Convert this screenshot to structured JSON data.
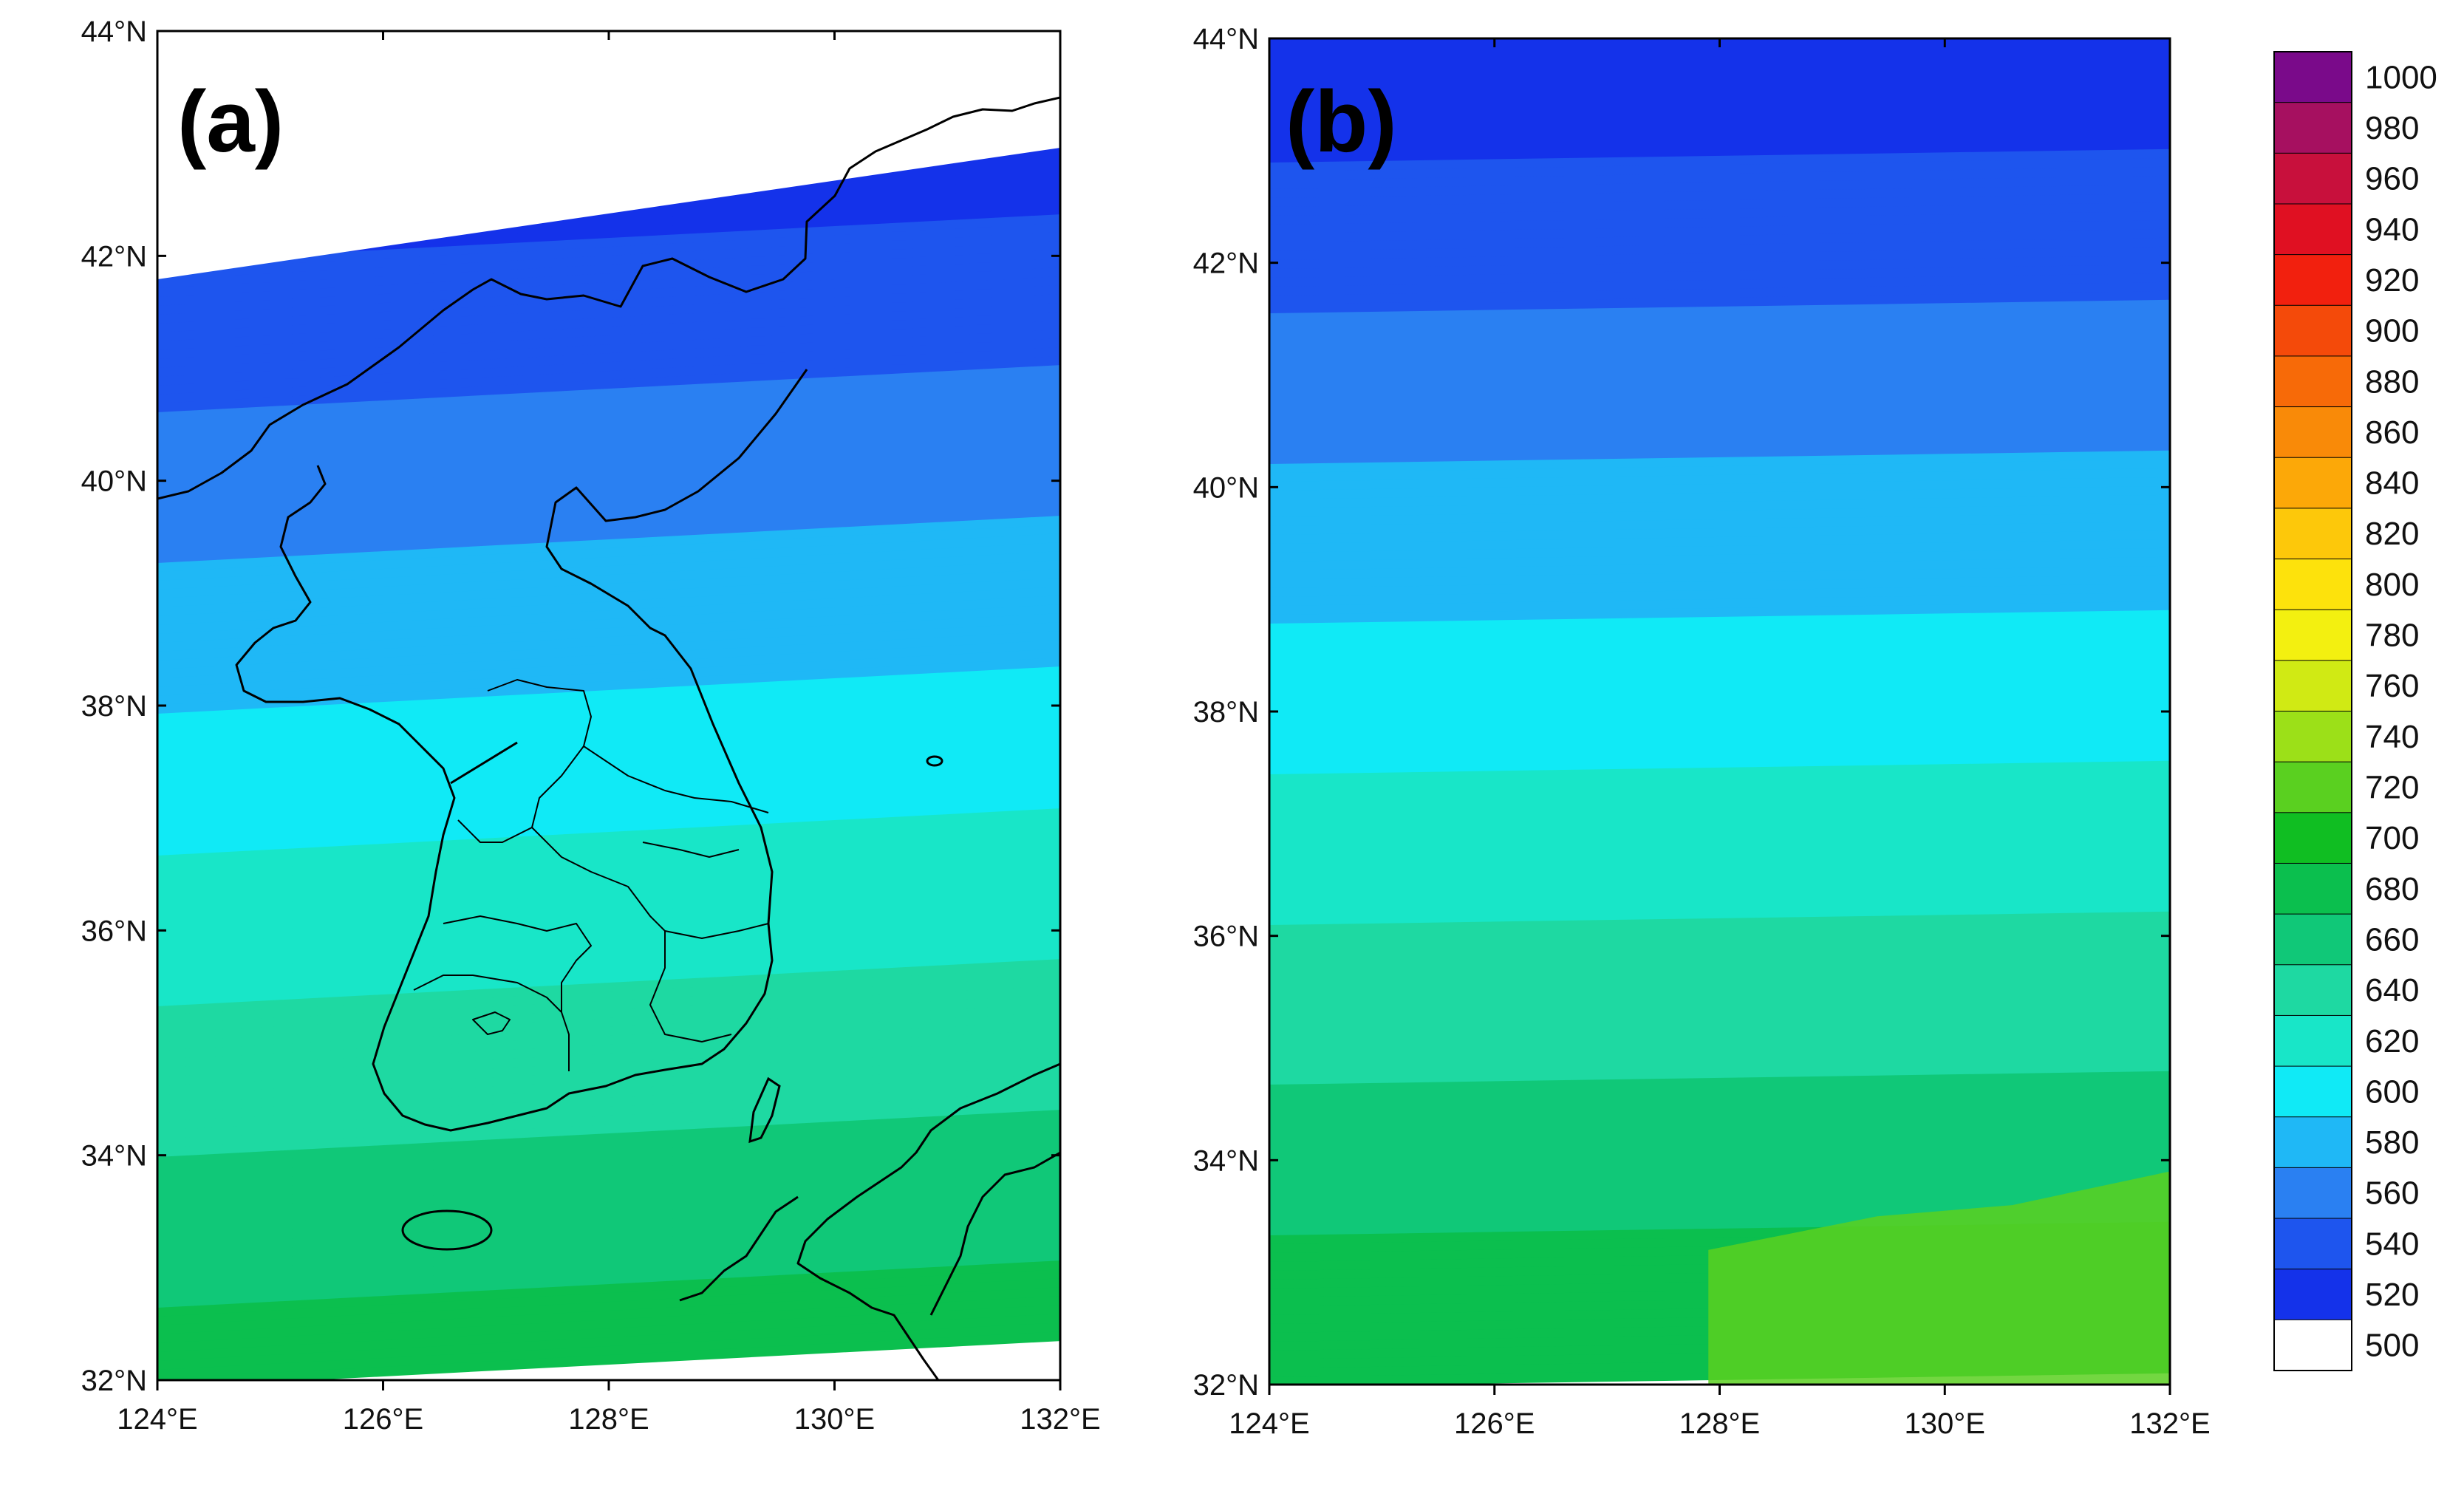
{
  "panels": [
    {
      "label": "(a)",
      "lat_labels": [
        "44°N",
        "42°N",
        "40°N",
        "38°N",
        "36°N",
        "34°N",
        "32°N"
      ],
      "lon_labels": [
        "124°E",
        "126°E",
        "128°E",
        "130°E",
        "132°E"
      ],
      "lat_range": [
        32,
        44
      ],
      "lon_range": [
        124,
        132
      ],
      "field": {
        "value_south": 690,
        "value_north": 510,
        "tilt": 0.035,
        "missing_north_edge_lat_at_124E": 41.8,
        "missing_north_edge_lat_at_132E": 42.95
      }
    },
    {
      "label": "(b)",
      "lat_labels": [
        "44°N",
        "42°N",
        "40°N",
        "38°N",
        "36°N",
        "34°N",
        "32°N"
      ],
      "lon_labels": [
        "124°E",
        "126°E",
        "128°E",
        "130°E",
        "132°E"
      ],
      "lat_range": [
        32,
        44
      ],
      "lon_range": [
        124,
        132
      ],
      "field": {
        "value_south": 700,
        "value_north": 525,
        "tilt": 0.01,
        "southeast_patch_value": 730
      }
    }
  ],
  "colorbar": {
    "levels": [
      "1000",
      "980",
      "960",
      "940",
      "920",
      "900",
      "880",
      "860",
      "840",
      "820",
      "800",
      "780",
      "760",
      "740",
      "720",
      "700",
      "680",
      "660",
      "640",
      "620",
      "600",
      "580",
      "560",
      "540",
      "520",
      "500"
    ],
    "bottom_bin_color": "#ffffff"
  },
  "palette": {
    "500": "#0a1ee6",
    "520": "#1432ea",
    "540": "#1e55ee",
    "560": "#2a80f2",
    "580": "#1fb8f6",
    "600": "#10eaf6",
    "620": "#18e6c8",
    "640": "#1ed9a2",
    "660": "#10c878",
    "680": "#0bbf4e",
    "700": "#10be22",
    "720": "#5ad020",
    "740": "#9ce018",
    "760": "#d0ea14",
    "780": "#f3f010",
    "800": "#fde20c",
    "820": "#fdc80a",
    "840": "#fca808",
    "860": "#f98a08",
    "880": "#f76a08",
    "900": "#f44a0a",
    "920": "#f2200e",
    "940": "#e01022",
    "960": "#c8103c",
    "980": "#a61060",
    "1000": "#7a0a8a"
  }
}
